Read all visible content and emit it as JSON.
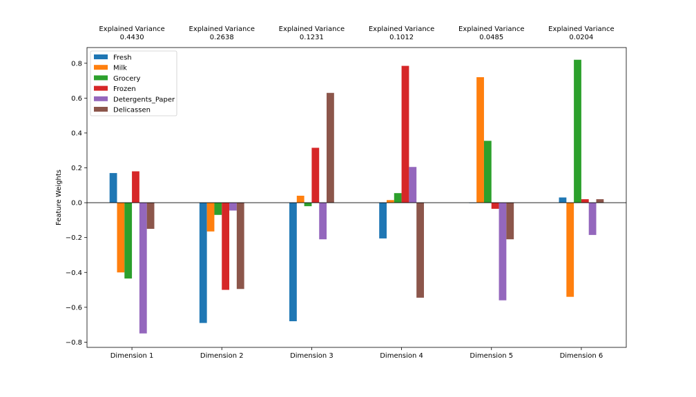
{
  "chart_data": {
    "type": "bar",
    "ylabel": "Feature Weights",
    "ylim": [
      -0.83,
      0.89
    ],
    "yticks": [
      0.8,
      0.6,
      0.4,
      0.2,
      0.0,
      -0.2,
      -0.4,
      -0.6,
      -0.8
    ],
    "ytick_labels": [
      "0.8",
      "0.6",
      "0.4",
      "0.2",
      "0.0",
      "−0.2",
      "−0.4",
      "−0.6",
      "−0.8"
    ],
    "categories": [
      "Dimension 1",
      "Dimension 2",
      "Dimension 3",
      "Dimension 4",
      "Dimension 5",
      "Dimension 6"
    ],
    "variance_title": "Explained Variance",
    "variance_values": [
      "0.4430",
      "0.2638",
      "0.1231",
      "0.1012",
      "0.0485",
      "0.0204"
    ],
    "legend_position": "top-left",
    "grid": false,
    "series": [
      {
        "name": "Fresh",
        "color": "#1f77b4",
        "values": [
          0.17,
          -0.69,
          -0.68,
          -0.205,
          -0.002,
          0.03
        ]
      },
      {
        "name": "Milk",
        "color": "#ff7f0e",
        "values": [
          -0.4,
          -0.165,
          0.04,
          0.015,
          0.72,
          -0.54
        ]
      },
      {
        "name": "Grocery",
        "color": "#2ca02c",
        "values": [
          -0.435,
          -0.07,
          -0.02,
          0.055,
          0.355,
          0.82
        ]
      },
      {
        "name": "Frozen",
        "color": "#d62728",
        "values": [
          0.18,
          -0.5,
          0.315,
          0.785,
          -0.035,
          0.02
        ]
      },
      {
        "name": "Detergents_Paper",
        "color": "#9467bd",
        "values": [
          -0.75,
          -0.045,
          -0.21,
          0.205,
          -0.56,
          -0.185
        ]
      },
      {
        "name": "Delicassen",
        "color": "#8c564b",
        "values": [
          -0.15,
          -0.495,
          0.63,
          -0.545,
          -0.21,
          0.02
        ]
      }
    ]
  }
}
